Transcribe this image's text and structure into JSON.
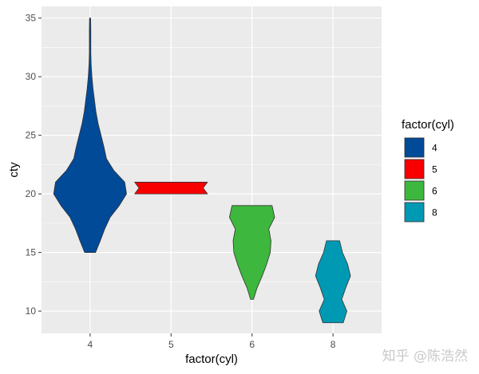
{
  "chart_data": {
    "type": "violin",
    "xlabel": "factor(cyl)",
    "ylabel": "cty",
    "categories": [
      "4",
      "5",
      "6",
      "8"
    ],
    "ylim": [
      8.1,
      36.0
    ],
    "yticks": [
      10,
      15,
      20,
      25,
      30,
      35
    ],
    "grid": true,
    "legend": {
      "title": "factor(cyl)",
      "position": "right",
      "labels": [
        "4",
        "5",
        "6",
        "8"
      ]
    },
    "series": [
      {
        "category": "4",
        "color": "#004A98",
        "min": 15,
        "max": 35,
        "density": [
          [
            15,
            0.15
          ],
          [
            16,
            0.28
          ],
          [
            17,
            0.4
          ],
          [
            18,
            0.55
          ],
          [
            19,
            0.8
          ],
          [
            20,
            1.0
          ],
          [
            21,
            0.95
          ],
          [
            22,
            0.65
          ],
          [
            23,
            0.45
          ],
          [
            24,
            0.38
          ],
          [
            25,
            0.3
          ],
          [
            26,
            0.22
          ],
          [
            27,
            0.16
          ],
          [
            28,
            0.12
          ],
          [
            29,
            0.08
          ],
          [
            30,
            0.05
          ],
          [
            31,
            0.03
          ],
          [
            32,
            0.02
          ],
          [
            33,
            0.02
          ],
          [
            34,
            0.02
          ],
          [
            35,
            0.015
          ]
        ]
      },
      {
        "category": "5",
        "color": "#F90000",
        "min": 20,
        "max": 21,
        "density": [
          [
            20,
            1.0
          ],
          [
            20.5,
            0.88
          ],
          [
            21,
            1.0
          ]
        ]
      },
      {
        "category": "6",
        "color": "#3DB73D",
        "min": 11,
        "max": 19,
        "density": [
          [
            11,
            0.04
          ],
          [
            12,
            0.14
          ],
          [
            13,
            0.28
          ],
          [
            14,
            0.4
          ],
          [
            15,
            0.5
          ],
          [
            16,
            0.52
          ],
          [
            17,
            0.46
          ],
          [
            18,
            0.62
          ],
          [
            19,
            0.55
          ]
        ]
      },
      {
        "category": "8",
        "color": "#0099B4",
        "min": 9,
        "max": 16,
        "density": [
          [
            9,
            0.28
          ],
          [
            10,
            0.38
          ],
          [
            11,
            0.24
          ],
          [
            12,
            0.35
          ],
          [
            13,
            0.48
          ],
          [
            14,
            0.4
          ],
          [
            15,
            0.26
          ],
          [
            16,
            0.18
          ]
        ]
      }
    ]
  },
  "watermark": "知乎 @陈浩然"
}
